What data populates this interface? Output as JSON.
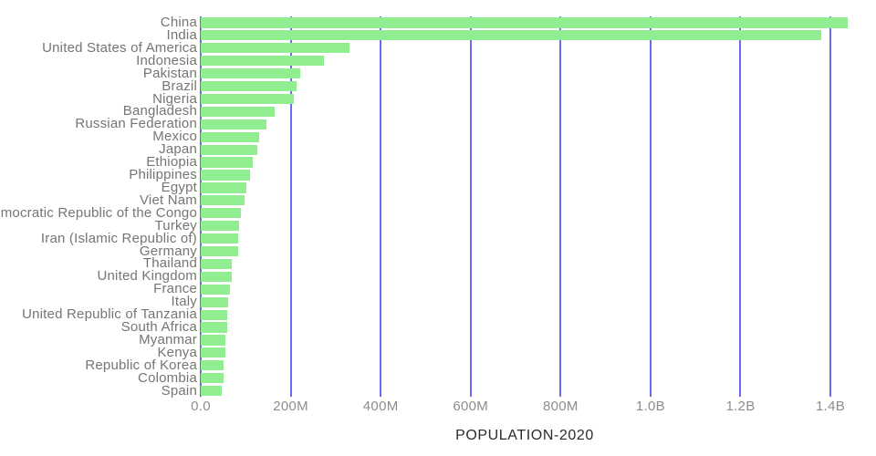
{
  "chart_data": {
    "type": "bar",
    "orientation": "horizontal",
    "title": "",
    "xlabel": "POPULATION-2020",
    "ylabel": "",
    "unit": "persons",
    "value_unit_in_json": "millions",
    "categories": [
      "China",
      "India",
      "United States of America",
      "Indonesia",
      "Pakistan",
      "Brazil",
      "Nigeria",
      "Bangladesh",
      "Russian Federation",
      "Mexico",
      "Japan",
      "Ethiopia",
      "Philippines",
      "Egypt",
      "Viet Nam",
      "Democratic Republic of the Congo",
      "Turkey",
      "Iran (Islamic Republic of)",
      "Germany",
      "Thailand",
      "United Kingdom",
      "France",
      "Italy",
      "United Republic of Tanzania",
      "South Africa",
      "Myanmar",
      "Kenya",
      "Republic of Korea",
      "Colombia",
      "Spain"
    ],
    "values": [
      1439.3,
      1380.0,
      331.0,
      273.5,
      220.9,
      212.6,
      206.1,
      164.7,
      145.9,
      128.9,
      126.5,
      115.0,
      109.6,
      102.3,
      97.3,
      89.6,
      84.3,
      84.0,
      83.8,
      69.8,
      67.9,
      65.3,
      60.5,
      59.7,
      59.3,
      54.4,
      53.8,
      51.3,
      50.9,
      46.8
    ],
    "x_ticks": [
      {
        "value": 0,
        "label": "0.0"
      },
      {
        "value": 200,
        "label": "200M"
      },
      {
        "value": 400,
        "label": "400M"
      },
      {
        "value": 600,
        "label": "600M"
      },
      {
        "value": 800,
        "label": "800M"
      },
      {
        "value": 1000,
        "label": "1.0B"
      },
      {
        "value": 1200,
        "label": "1.2B"
      },
      {
        "value": 1400,
        "label": "1.4B"
      }
    ],
    "xlim": [
      0,
      1450
    ],
    "grid": "vertical-only",
    "legend": "none",
    "colors": {
      "bar": "#90ee90",
      "gridline": "#6b6bf2",
      "category_label": "#757575",
      "tick_label": "#8d8d8d",
      "axis_title": "#2b2b2b",
      "background": "#ffffff"
    }
  }
}
